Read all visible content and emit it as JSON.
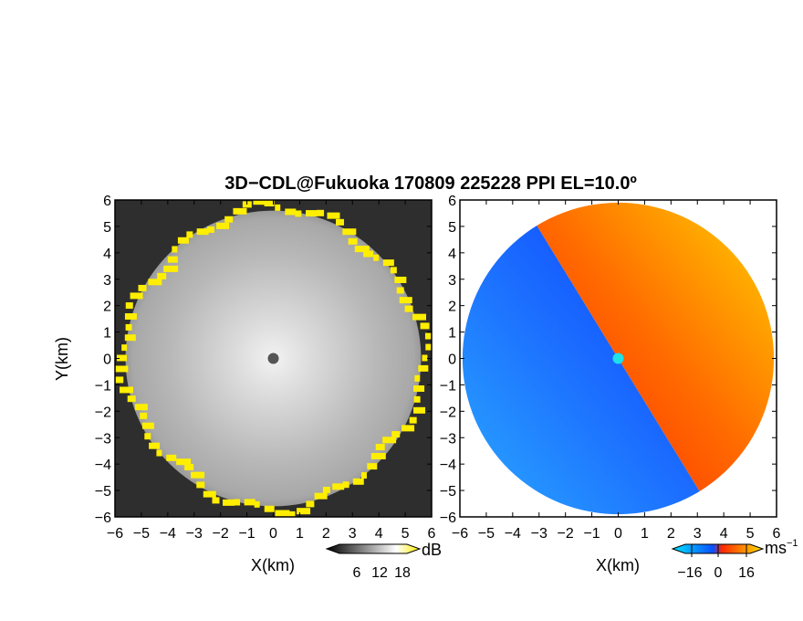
{
  "chart_data": {
    "title": "3D−CDL@Fukuoka 170809 225228 PPI EL=10.0º",
    "panels": [
      {
        "type": "heatmap",
        "quantity": "SNR",
        "xlabel": "X(km)",
        "ylabel": "Y(km)",
        "xlim": [
          -6,
          6
        ],
        "ylim": [
          -6,
          6
        ],
        "x_ticks": [
          -6,
          -5,
          -4,
          -3,
          -2,
          -1,
          0,
          1,
          2,
          3,
          4,
          5,
          6
        ],
        "y_ticks": [
          -6,
          -5,
          -4,
          -3,
          -2,
          -1,
          0,
          1,
          2,
          3,
          4,
          5,
          6
        ],
        "echo_radius_km": 5.6,
        "edge_color": "#ffee00",
        "colorbar": {
          "unit": "dB",
          "ticks": [
            "6",
            "12",
            "18"
          ],
          "colors": [
            "#000000",
            "#ffffff",
            "#ffee00"
          ]
        }
      },
      {
        "type": "heatmap",
        "quantity": "Doppler velocity",
        "xlabel": "X(km)",
        "ylabel": "",
        "xlim": [
          -6,
          6
        ],
        "ylim": [
          -6,
          6
        ],
        "x_ticks": [
          -6,
          -5,
          -4,
          -3,
          -2,
          -1,
          0,
          1,
          2,
          3,
          4,
          5,
          6
        ],
        "y_ticks": [
          -6,
          -5,
          -4,
          -3,
          -2,
          -1,
          0,
          1,
          2,
          3,
          4,
          5,
          6
        ],
        "echo_radius_km": 5.9,
        "colorbar": {
          "unit": "ms",
          "unit_exponent": "−1",
          "ticks": [
            "−16",
            "0",
            "16"
          ],
          "range": [
            -16,
            16
          ],
          "colors": [
            "#00e5ff",
            "#0a4fff",
            "#ff2a00",
            "#ffe100"
          ]
        }
      }
    ]
  }
}
